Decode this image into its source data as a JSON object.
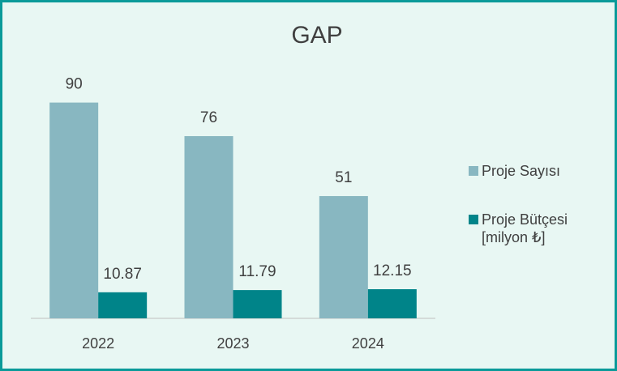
{
  "chart_data": {
    "type": "bar",
    "title": "GAP",
    "categories": [
      "2022",
      "2023",
      "2024"
    ],
    "series": [
      {
        "name": "Proje Sayısı",
        "color": "#88b7c1",
        "values": [
          90,
          76,
          51
        ]
      },
      {
        "name": "Proje Bütçesi [milyon ₺]",
        "color": "#008489",
        "values": [
          10.87,
          11.79,
          12.15
        ]
      }
    ],
    "ylim": [
      0,
      100
    ],
    "legend": "right"
  }
}
